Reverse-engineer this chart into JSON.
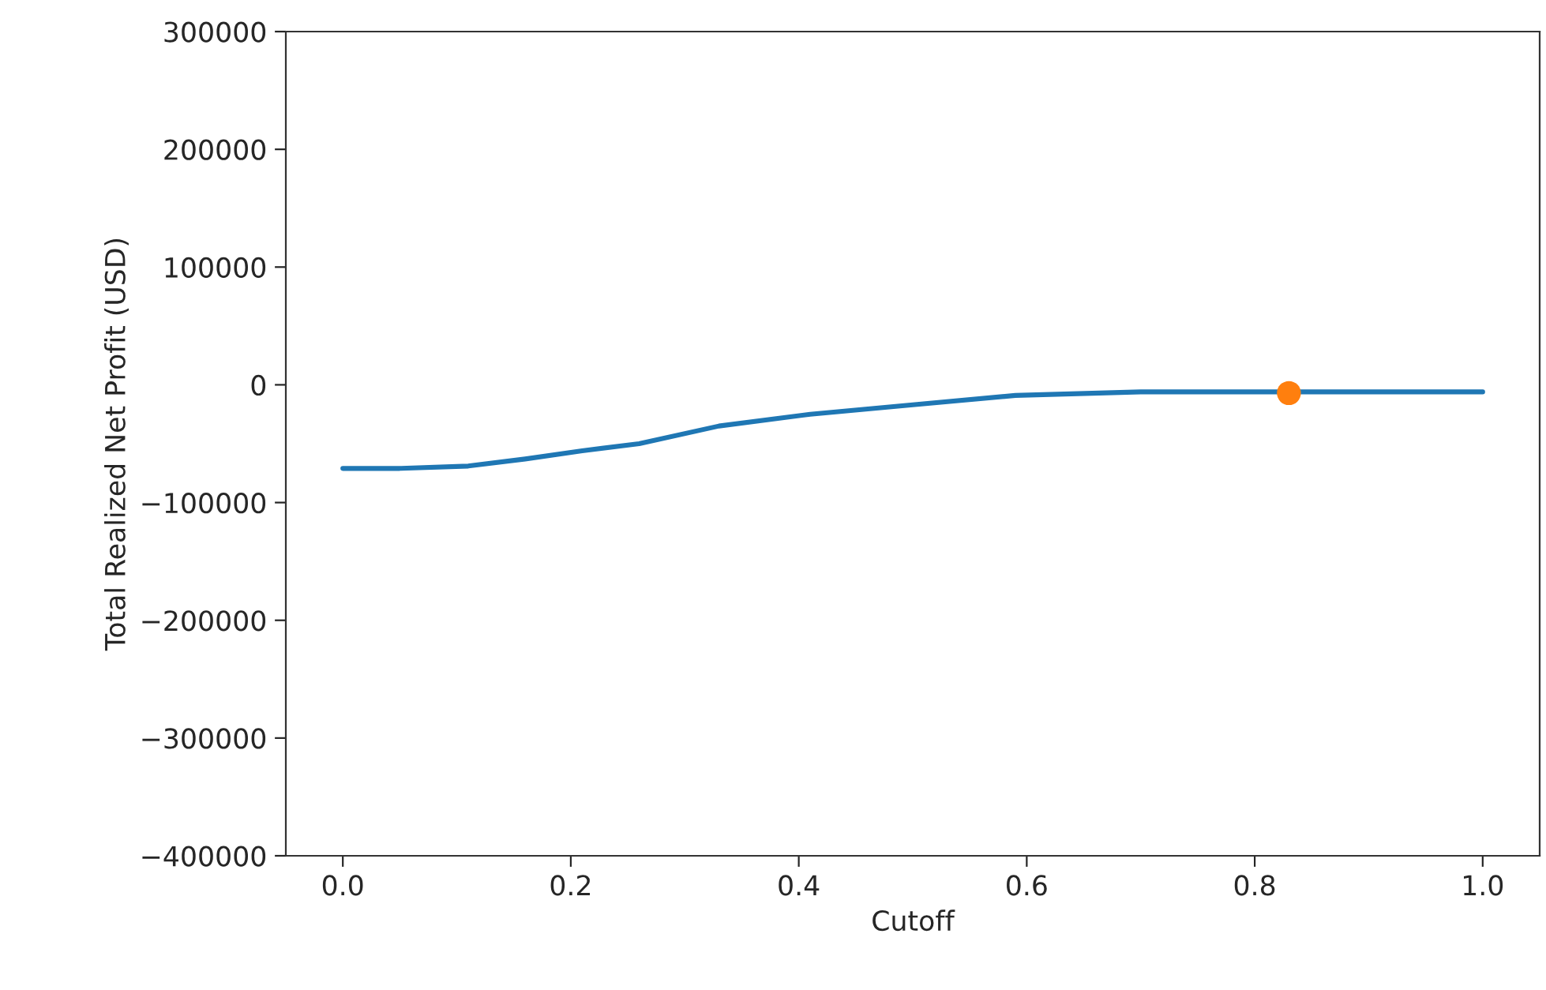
{
  "chart_data": {
    "type": "line",
    "xlabel": "Cutoff",
    "ylabel": "Total Realized Net Profit (USD)",
    "xlim": [
      -0.05,
      1.05
    ],
    "xticks": [
      {
        "value": 0.0,
        "label": "0.0"
      },
      {
        "value": 0.2,
        "label": "0.2"
      },
      {
        "value": 0.4,
        "label": "0.4"
      },
      {
        "value": 0.6,
        "label": "0.6"
      },
      {
        "value": 0.8,
        "label": "0.8"
      },
      {
        "value": 1.0,
        "label": "1.0"
      }
    ],
    "ylim": [
      -400000,
      300000
    ],
    "yticks": [
      {
        "value": -400000,
        "label": "−400000"
      },
      {
        "value": -300000,
        "label": "−300000"
      },
      {
        "value": -200000,
        "label": "−200000"
      },
      {
        "value": -100000,
        "label": "−100000"
      },
      0,
      100000,
      200000,
      300000
    ],
    "grid": false,
    "series": [
      {
        "color": "#1f77b4",
        "marker": "none",
        "x": [
          0,
          0.05,
          0.11,
          0.16,
          0.21,
          0.26,
          0.33,
          0.41,
          0.5,
          0.59,
          0.7,
          0.9,
          1.0
        ],
        "values": [
          -71000,
          -71000,
          -69000,
          -63000,
          -56000,
          -50000,
          -35000,
          -25000,
          -17000,
          -9000,
          -6000,
          -6000,
          -6000
        ]
      },
      {
        "type": "scatter",
        "color": "#ff7f0e",
        "marker": "circle",
        "x": [
          0.83
        ],
        "values": [
          -7000
        ]
      }
    ]
  }
}
